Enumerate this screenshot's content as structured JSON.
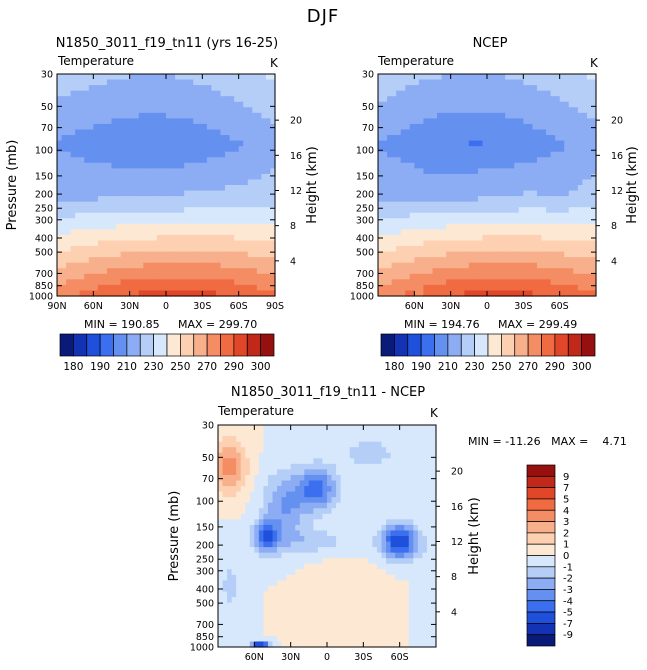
{
  "figure": {
    "title": "DJF"
  },
  "palettes": {
    "absolute": [
      "#0a1a78",
      "#1432b4",
      "#1e50dc",
      "#3c6ef0",
      "#6490f0",
      "#8cacf4",
      "#b4cef8",
      "#d8e8fc",
      "#fde8d4",
      "#fcd0b0",
      "#f8b08c",
      "#f48c64",
      "#f06a42",
      "#e04628",
      "#c0281a",
      "#961010"
    ],
    "difference": [
      "#0a1a78",
      "#1432b4",
      "#1e50dc",
      "#3c6ef0",
      "#6490f0",
      "#8cacf4",
      "#b4cef8",
      "#d8e8fc",
      "#fde8d4",
      "#fcd0b0",
      "#f8b08c",
      "#f48c64",
      "#f06a42",
      "#e04628",
      "#c0281a",
      "#961010"
    ]
  },
  "chart_data": [
    {
      "type": "contour",
      "id": "model",
      "title": "N1850_3011_f19_tn11 (yrs 16-25)",
      "variable": "Temperature",
      "units": "K",
      "ylabel": "Pressure (mb)",
      "ylabel_right": "Height (km)",
      "xlim": [
        90,
        -90
      ],
      "pressure_ticks": [
        "30",
        "50",
        "70",
        "100",
        "150",
        "200",
        "250",
        "300",
        "400",
        "500",
        "700",
        "850",
        "1000"
      ],
      "height_ticks": [
        "4",
        "8",
        "12",
        "16",
        "20"
      ],
      "lat_ticks": [
        "90N",
        "60N",
        "30N",
        "0",
        "30S",
        "60S",
        "90S"
      ],
      "min_label": "MIN = 190.85",
      "max_label": "MAX = 299.70",
      "min": 190.85,
      "max": 299.7,
      "levels": [
        180,
        185,
        190,
        200,
        210,
        220,
        230,
        240,
        250,
        260,
        270,
        280,
        290,
        295,
        300
      ],
      "colorbar_labels": [
        "180",
        "190",
        "210",
        "230",
        "250",
        "270",
        "290",
        "300"
      ]
    },
    {
      "type": "contour",
      "id": "ncep",
      "title": "NCEP",
      "variable": "Temperature",
      "units": "K",
      "ylabel_right": "Height (km)",
      "xlim": [
        90,
        -90
      ],
      "pressure_ticks": [
        "30",
        "50",
        "70",
        "100",
        "150",
        "200",
        "250",
        "300",
        "400",
        "500",
        "700",
        "850",
        "1000"
      ],
      "height_ticks": [
        "4",
        "8",
        "12",
        "16",
        "20"
      ],
      "lat_ticks": [
        "60N",
        "30N",
        "0",
        "30S",
        "60S"
      ],
      "min_label": "MIN = 194.76",
      "max_label": "MAX = 299.49",
      "min": 194.76,
      "max": 299.49,
      "levels": [
        180,
        185,
        190,
        200,
        210,
        220,
        230,
        240,
        250,
        260,
        270,
        280,
        290,
        295,
        300
      ],
      "colorbar_labels": [
        "180",
        "190",
        "210",
        "230",
        "250",
        "270",
        "290",
        "300"
      ]
    },
    {
      "type": "contour",
      "id": "diff",
      "title": "N1850_3011_f19_tn11 - NCEP",
      "variable": "Temperature",
      "units": "K",
      "ylabel": "Pressure (mb)",
      "ylabel_right": "Height (km)",
      "xlim": [
        90,
        -90
      ],
      "pressure_ticks": [
        "30",
        "50",
        "70",
        "100",
        "150",
        "200",
        "250",
        "300",
        "400",
        "500",
        "700",
        "850",
        "1000"
      ],
      "height_ticks": [
        "4",
        "8",
        "12",
        "16",
        "20"
      ],
      "lat_ticks": [
        "60N",
        "30N",
        "0",
        "30S",
        "60S"
      ],
      "minmax_label": "MIN = -11.26   MAX =    4.71",
      "min": -11.26,
      "max": 4.71,
      "levels": [
        -9,
        -7,
        -5,
        -4,
        -3,
        -2,
        -1,
        0,
        1,
        2,
        3,
        4,
        5,
        7,
        9
      ],
      "colorbar_labels": [
        "9",
        "7",
        "5",
        "4",
        "3",
        "2",
        "1",
        "0",
        "-1",
        "-2",
        "-3",
        "-4",
        "-5",
        "-7",
        "-9"
      ]
    }
  ]
}
